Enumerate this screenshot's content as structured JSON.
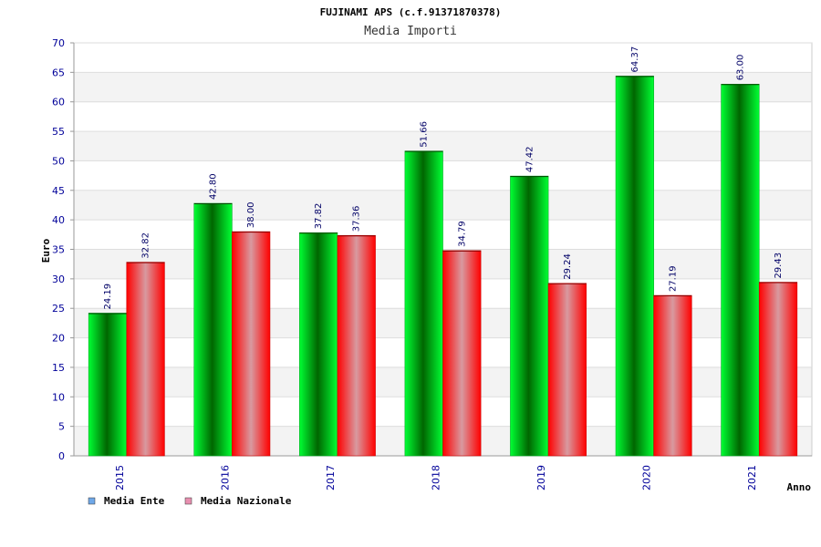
{
  "chart_data": {
    "type": "bar",
    "title": "FUJINAMI APS (c.f.91371870378)",
    "subtitle": "Media Importi",
    "xlabel": "Anno",
    "ylabel": "Euro",
    "categories": [
      "2015",
      "2016",
      "2017",
      "2018",
      "2019",
      "2020",
      "2021"
    ],
    "series": [
      {
        "name": "Media Ente",
        "values": [
          24.19,
          42.8,
          37.82,
          51.66,
          47.42,
          64.37,
          63.0
        ],
        "labels": [
          "24.19",
          "42.80",
          "37.82",
          "51.66",
          "47.42",
          "64.37",
          "63.00"
        ]
      },
      {
        "name": "Media Nazionale",
        "values": [
          32.82,
          38.0,
          37.36,
          34.79,
          29.24,
          27.19,
          29.43
        ],
        "labels": [
          "32.82",
          "38.00",
          "37.36",
          "34.79",
          "29.24",
          "27.19",
          "29.43"
        ]
      }
    ],
    "ylim": [
      0,
      70
    ],
    "yticks": [
      0,
      5,
      10,
      15,
      20,
      25,
      30,
      35,
      40,
      45,
      50,
      55,
      60,
      65,
      70
    ],
    "grid": true,
    "legend_position": "bottom-left",
    "colors": {
      "series1_dark": "#006600",
      "series1_light": "#00ff33",
      "series2_dark": "#ff0000",
      "series2_light": "#d89aa0",
      "legend1": "#6fa8e8",
      "legend2": "#e88fb0",
      "band": "#f3f3f3",
      "grid": "#dddddd",
      "tick_text": "#000099"
    }
  }
}
